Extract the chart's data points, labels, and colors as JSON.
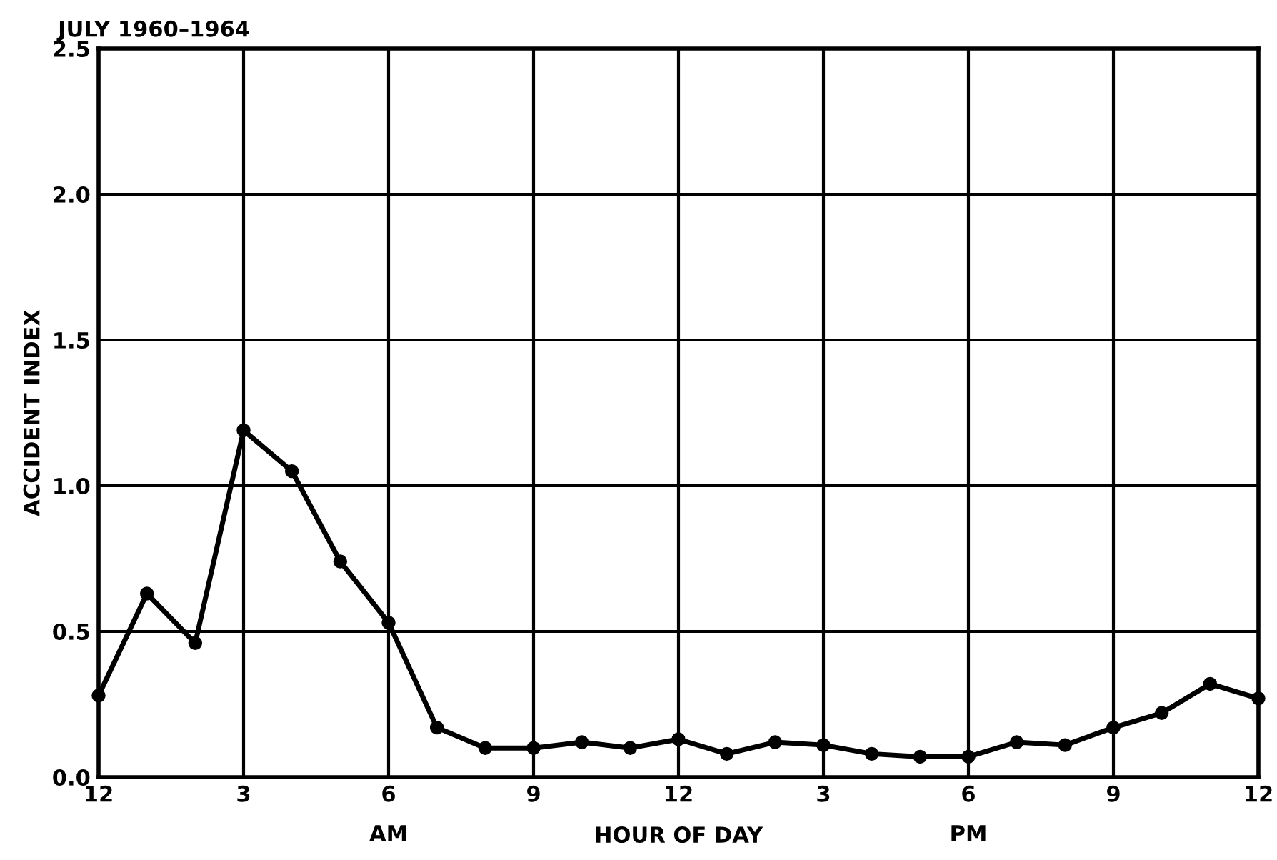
{
  "chart_data": {
    "type": "line",
    "title": "JULY 1960–1964",
    "xlabel": "HOUR OF DAY",
    "ylabel": "ACCIDENT INDEX",
    "annotations": [
      "AM",
      "PM"
    ],
    "categories": [
      "12",
      null,
      null,
      "3",
      null,
      null,
      "6",
      null,
      null,
      "9",
      null,
      null,
      "12",
      null,
      null,
      "3",
      null,
      null,
      "6",
      null,
      null,
      "9",
      null,
      null,
      "12"
    ],
    "series": [
      {
        "color": "#000000",
        "values": [
          0.28,
          0.63,
          0.46,
          1.19,
          1.05,
          0.74,
          0.53,
          0.17,
          0.1,
          0.1,
          0.12,
          0.1,
          0.13,
          0.08,
          0.12,
          0.11,
          0.08,
          0.07,
          0.07,
          0.12,
          0.11,
          0.17,
          0.22,
          0.32,
          0.27
        ]
      }
    ],
    "ylim": [
      0,
      2.5
    ],
    "yticks": [
      {
        "value": 0,
        "label": "0.0"
      },
      {
        "value": 0.5,
        "label": "0.5"
      },
      {
        "value": 1,
        "label": "1.0"
      },
      {
        "value": 1.5,
        "label": "1.5"
      },
      {
        "value": 2,
        "label": "2.0"
      },
      {
        "value": 2.5,
        "label": "2.5"
      }
    ],
    "grid": true,
    "marker": "circle",
    "line_style": "solid",
    "legend": false
  }
}
